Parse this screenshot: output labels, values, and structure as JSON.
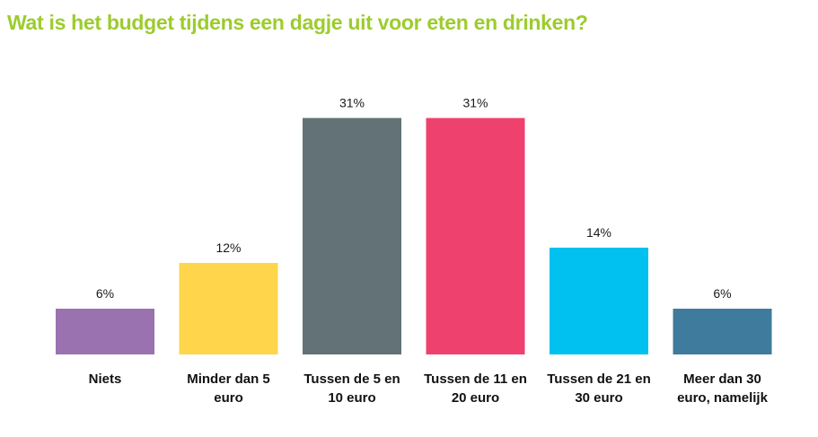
{
  "title": "Wat is het budget tijdens een dagje uit voor eten en drinken?",
  "chart_data": {
    "type": "bar",
    "title": "Wat is het budget tijdens een dagje uit voor eten en drinken?",
    "categories": [
      [
        "Niets"
      ],
      [
        "Minder dan 5",
        "euro"
      ],
      [
        "Tussen de 5 en",
        "10 euro"
      ],
      [
        "Tussen de 11 en",
        "20 euro"
      ],
      [
        "Tussen de 21 en",
        "30 euro"
      ],
      [
        "Meer dan 30",
        "euro, namelijk"
      ]
    ],
    "values": [
      6,
      12,
      31,
      31,
      14,
      6
    ],
    "value_labels": [
      "6%",
      "12%",
      "31%",
      "31%",
      "14%",
      "6%"
    ],
    "colors": [
      "#9b72b0",
      "#fed54b",
      "#627277",
      "#ef416e",
      "#00c1f0",
      "#3f7b9c"
    ],
    "xlabel": "",
    "ylabel": "",
    "grid": false,
    "legend": "none"
  }
}
